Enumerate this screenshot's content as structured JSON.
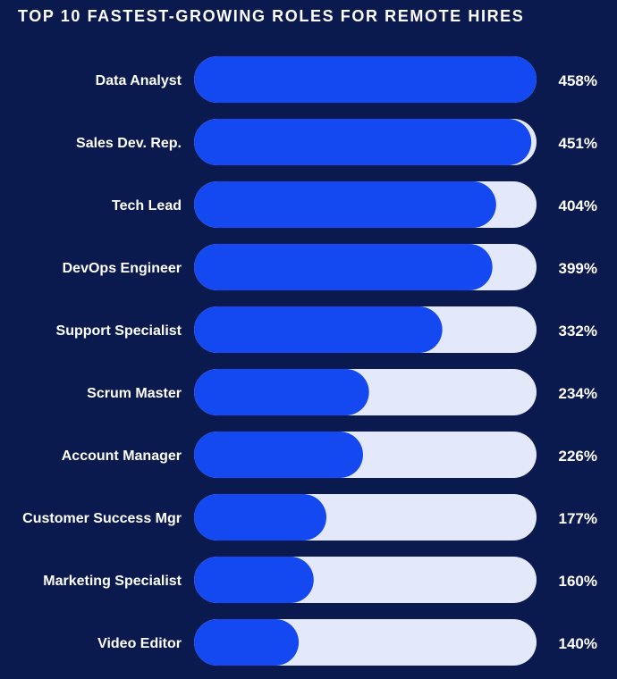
{
  "chart_data": {
    "type": "bar",
    "orientation": "horizontal",
    "title": "TOP 10 FASTEST-GROWING ROLES FOR REMOTE HIRES",
    "categories": [
      "Data Analyst",
      "Sales Dev. Rep.",
      "Tech Lead",
      "DevOps Engineer",
      "Support Specialist",
      "Scrum Master",
      "Account Manager",
      "Customer Success Mgr",
      "Marketing Specialist",
      "Video Editor"
    ],
    "values": [
      458,
      451,
      404,
      399,
      332,
      234,
      226,
      177,
      160,
      140
    ],
    "value_labels": [
      "458%",
      "451%",
      "404%",
      "399%",
      "332%",
      "234%",
      "226%",
      "177%",
      "160%",
      "140%"
    ],
    "unit": "%",
    "xlim": [
      0,
      458
    ],
    "grid": false,
    "colors": {
      "background": "#0b1a4e",
      "bar_fill": "#1448f0",
      "track": "#e3e8fb",
      "text": "#ffffff"
    }
  }
}
